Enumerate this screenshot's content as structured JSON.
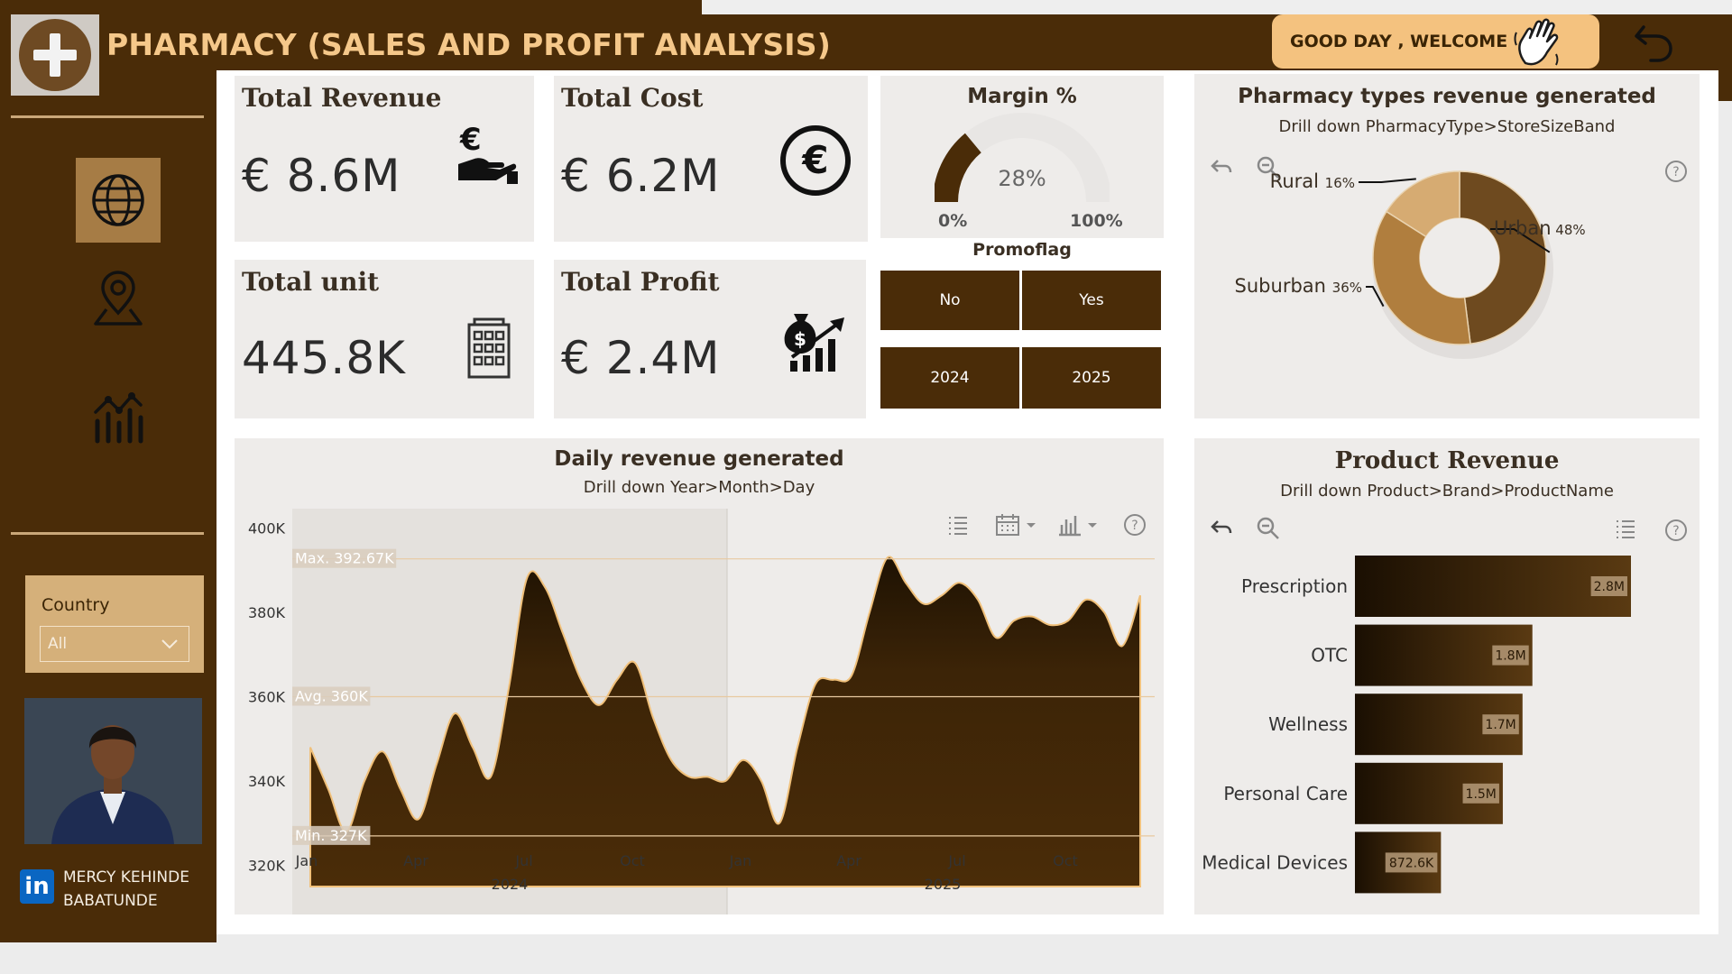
{
  "header": {
    "title": "PHARMACY (SALES AND PROFIT ANALYSIS)",
    "welcome": "GOOD DAY , WELCOME",
    "brand_color": "#4a2c08",
    "accent_color": "#f5c88a"
  },
  "sidebar": {
    "nav": [
      {
        "icon": "globe-icon",
        "active": true
      },
      {
        "icon": "location-pin-icon",
        "active": false
      },
      {
        "icon": "analytics-icon",
        "active": false
      }
    ],
    "country_label": "Country",
    "country_value": "All",
    "author_first": "MERCY KEHINDE",
    "author_last": "BABATUNDE",
    "linkedin": "in"
  },
  "kpis": {
    "revenue": {
      "title": "Total Revenue",
      "value": "€ 8.6M"
    },
    "cost": {
      "title": "Total Cost",
      "value": "€ 6.2M"
    },
    "unit": {
      "title": "Total unit",
      "value": "445.8K"
    },
    "profit": {
      "title": "Total Profit",
      "value": "€ 2.4M"
    }
  },
  "margin": {
    "title": "Margin %",
    "value": 28,
    "value_label": "28%",
    "min_label": "0%",
    "max_label": "100%"
  },
  "promoflag": {
    "title": "Promoflag",
    "options": [
      "No",
      "Yes"
    ],
    "years": [
      "2024",
      "2025"
    ]
  },
  "pharmacy_types": {
    "title": "Pharmacy types revenue generated",
    "subtitle": "Drill down PharmacyType>StoreSizeBand",
    "chart_data": {
      "type": "pie",
      "slices": [
        {
          "label": "Urban",
          "percent_label": "48%",
          "value": 48,
          "color": "#6e4a1f"
        },
        {
          "label": "Suburban",
          "percent_label": "36%",
          "value": 36,
          "color": "#b07e3e"
        },
        {
          "label": "Rural",
          "percent_label": "16%",
          "value": 16,
          "color": "#d6ab72"
        }
      ]
    }
  },
  "daily_revenue": {
    "title": "Daily revenue generated",
    "subtitle": "Drill down Year>Month>Day",
    "chart_data": {
      "type": "area",
      "y_ticks": [
        "400K",
        "380K",
        "360K",
        "340K",
        "320K"
      ],
      "ylim": [
        315000,
        405000
      ],
      "x_ticks": [
        "Jan",
        "Apr",
        "Jul",
        "Oct",
        "Jan",
        "Apr",
        "Jul",
        "Oct"
      ],
      "years": [
        "2024",
        "2025"
      ],
      "reference_lines": [
        {
          "label": "Max. 392.67K",
          "value": 392670
        },
        {
          "label": "Avg. 360K",
          "value": 360000
        },
        {
          "label": "Min. 327K",
          "value": 327000
        }
      ],
      "x": [
        0,
        0.5,
        1,
        1.5,
        2,
        2.5,
        3,
        3.5,
        4,
        4.5,
        5,
        5.5,
        6,
        6.5,
        7,
        7.5,
        8,
        8.5,
        9,
        9.5,
        10,
        10.5,
        11,
        11.5,
        12,
        12.5,
        13,
        13.5,
        14,
        14.5,
        15,
        15.5,
        16,
        16.5,
        17,
        17.5,
        18,
        18.5,
        19,
        19.5,
        20,
        20.5,
        21,
        21.5,
        22,
        22.5,
        23
      ],
      "values": [
        348000,
        338000,
        328000,
        340000,
        347000,
        338000,
        331000,
        344000,
        356000,
        348000,
        341000,
        362000,
        388000,
        386000,
        375000,
        364000,
        358000,
        364000,
        368000,
        355000,
        345000,
        341000,
        341000,
        340000,
        345000,
        340000,
        330000,
        348000,
        363000,
        364000,
        365000,
        380000,
        393000,
        387000,
        382000,
        384000,
        387000,
        383000,
        374000,
        378000,
        379000,
        377000,
        378000,
        383000,
        380000,
        372000,
        384000
      ]
    }
  },
  "product_revenue": {
    "title": "Product Revenue",
    "subtitle": "Drill down Product>Brand>ProductName",
    "chart_data": {
      "type": "bar",
      "categories": [
        "Prescription",
        "OTC",
        "Wellness",
        "Personal Care",
        "Medical Devices"
      ],
      "values": [
        2.8,
        1.8,
        1.7,
        1.5,
        0.8726
      ],
      "labels": [
        "2.8M",
        "1.8M",
        "1.7M",
        "1.5M",
        "872.6K"
      ],
      "unit": "M EUR"
    }
  }
}
